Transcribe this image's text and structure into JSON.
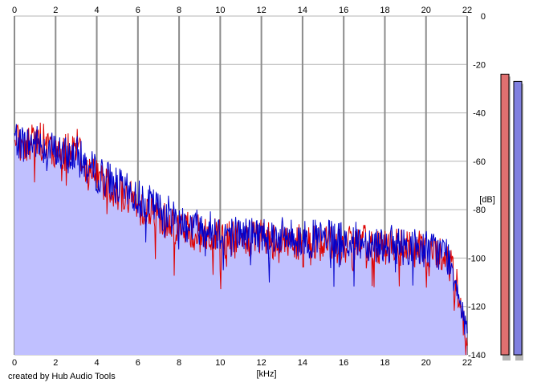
{
  "app": {
    "credit": "created by Hub Audio Tools"
  },
  "chart_data": {
    "type": "area",
    "xlabel": "[kHz]",
    "ylabel": "[dB]",
    "xlim": [
      0,
      22
    ],
    "ylim": [
      -140,
      0
    ],
    "xticks": [
      0,
      2,
      4,
      6,
      8,
      10,
      12,
      14,
      16,
      18,
      20,
      22
    ],
    "xtick_labels": [
      "0",
      "2",
      "4",
      "6",
      "8",
      "10",
      "12",
      "14",
      "16",
      "18",
      "20",
      "22"
    ],
    "yticks": [
      0,
      -20,
      -40,
      -60,
      -80,
      -100,
      -120,
      -140
    ],
    "ytick_labels": [
      "0",
      "-20",
      "-40",
      "-60",
      "-80",
      "-100",
      "-120",
      "-140"
    ],
    "grid": true,
    "series": [
      {
        "color": "#0000cc",
        "fill": "#c0c0ff",
        "x": [
          0,
          0.5,
          1,
          1.5,
          2,
          2.5,
          3,
          3.5,
          4,
          4.5,
          5,
          5.5,
          6,
          6.5,
          7,
          7.5,
          8,
          8.5,
          9,
          9.5,
          10,
          11,
          12,
          13,
          14,
          15,
          16,
          17,
          18,
          19,
          20,
          20.5,
          21,
          21.5,
          22
        ],
        "values": [
          -50,
          -53,
          -52,
          -54,
          -56,
          -58,
          -57,
          -62,
          -65,
          -67,
          -70,
          -73,
          -75,
          -77,
          -80,
          -82,
          -84,
          -86,
          -87,
          -88,
          -89,
          -90,
          -90,
          -91,
          -92,
          -92,
          -93,
          -93,
          -94,
          -95,
          -96,
          -97,
          -98,
          -110,
          -130
        ]
      },
      {
        "color": "#dd0000",
        "x": [
          0,
          0.5,
          1,
          1.5,
          2,
          2.5,
          3,
          3.5,
          4,
          4.5,
          5,
          5.5,
          6,
          6.5,
          7,
          7.5,
          8,
          8.5,
          9,
          9.5,
          10,
          11,
          12,
          13,
          14,
          15,
          16,
          17,
          18,
          19,
          20,
          20.5,
          21,
          21.5,
          22
        ],
        "values": [
          -52,
          -55,
          -50,
          -53,
          -58,
          -56,
          -52,
          -64,
          -66,
          -69,
          -72,
          -75,
          -78,
          -80,
          -83,
          -85,
          -87,
          -89,
          -90,
          -91,
          -92,
          -93,
          -92,
          -93,
          -94,
          -93,
          -95,
          -94,
          -95,
          -96,
          -97,
          -98,
          -99,
          -112,
          -132
        ]
      }
    ],
    "level_meters": [
      {
        "color": "#e07070",
        "level_db": -24
      },
      {
        "color": "#8080e0",
        "level_db": -27
      }
    ]
  }
}
